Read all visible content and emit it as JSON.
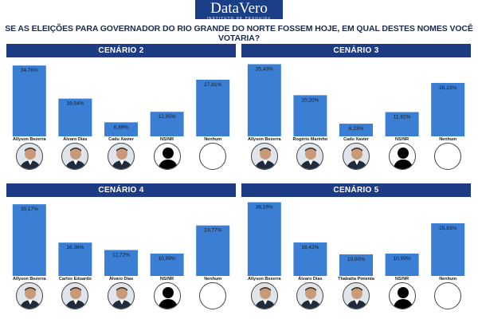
{
  "brand": {
    "logo": "DataVero",
    "subtitle": "INSTITUTO DE PESQUISA"
  },
  "question": "SE AS ELEIÇÕES PARA GOVERNADOR DO RIO GRANDE DO NORTE FOSSEM HOJE, EM QUAL DESTES NOMES VOCÊ VOTARIA?",
  "colors": {
    "bar": "#3b7fd4",
    "header": "#1e3b85",
    "logo_bg": "#1a3f86"
  },
  "chart_data": [
    {
      "type": "bar",
      "title": "CENÁRIO 2",
      "categories": [
        "Allyson Bezerra",
        "Álvaro Dias",
        "Cadu Xavier",
        "NS/NR",
        "Nenhum"
      ],
      "values": [
        34.76,
        18.54,
        6.89,
        12.05,
        27.81
      ],
      "labels": [
        "34,76%",
        "18,54%",
        "6,89%",
        "12,05%",
        "27,81%"
      ],
      "avatars": [
        "candidate-photo",
        "candidate-photo",
        "candidate-photo",
        "silhouette",
        "blank"
      ],
      "ylim": [
        0,
        36
      ]
    },
    {
      "type": "bar",
      "title": "CENÁRIO 3",
      "categories": [
        "Allyson Bezerra",
        "Rogério Marinho",
        "Cadu Xavier",
        "NS/NR",
        "Nenhum"
      ],
      "values": [
        35.43,
        20.2,
        6.23,
        11.92,
        26.23
      ],
      "labels": [
        "35,43%",
        "20,20%",
        "6,23%",
        "11,92%",
        "26,23%"
      ],
      "avatars": [
        "candidate-photo",
        "candidate-photo",
        "candidate-photo",
        "silhouette",
        "blank"
      ],
      "ylim": [
        0,
        36
      ]
    },
    {
      "type": "bar",
      "title": "CENÁRIO 4",
      "categories": [
        "Allyson Bezerra",
        "Carlos Eduardo",
        "Álvaro Dias",
        "NS/NR",
        "Nenhum"
      ],
      "values": [
        35.17,
        16.36,
        12.72,
        10.99,
        24.77
      ],
      "labels": [
        "35,17%",
        "16,36%",
        "12,72%",
        "10,99%",
        "24,77%"
      ],
      "avatars": [
        "candidate-photo",
        "candidate-photo",
        "candidate-photo",
        "silhouette",
        "blank"
      ],
      "ylim": [
        0,
        36
      ]
    },
    {
      "type": "bar",
      "title": "CENÁRIO 5",
      "categories": [
        "Allyson Bezerra",
        "Álvaro Dias",
        "Thabatta Pimenta",
        "NS/NR",
        "Nenhum"
      ],
      "values": [
        36.16,
        16.42,
        10.6,
        10.99,
        25.83
      ],
      "labels": [
        "36,16%",
        "16,42%",
        "10,60%",
        "10,99%",
        "25,83%"
      ],
      "avatars": [
        "candidate-photo",
        "candidate-photo",
        "candidate-photo",
        "silhouette",
        "blank"
      ],
      "ylim": [
        0,
        36
      ]
    }
  ]
}
